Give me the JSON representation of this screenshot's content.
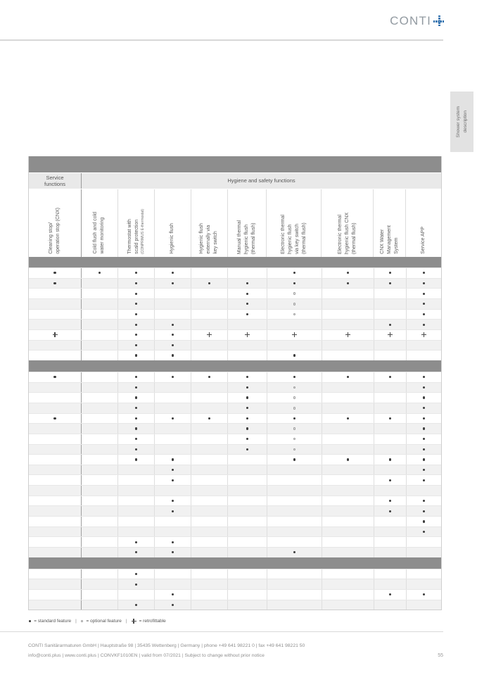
{
  "logo": {
    "text": "CONTI",
    "plus_color": "#2e6fad",
    "text_color": "#929aa1"
  },
  "side_tab": {
    "text": "Shower system\ndescription"
  },
  "table": {
    "groups": [
      {
        "label": "Service\nfunctions"
      },
      {
        "label": "Hygiene and safety functions"
      }
    ],
    "columns": [
      {
        "label": "Cleaning stop/\noperation stop (CNX)",
        "sublabel": ""
      },
      {
        "label": "Cold flush and cold\nwater monitoring",
        "sublabel": ""
      },
      {
        "label": "Thermostat with\nscald protection",
        "sublabel": "(CONPRIMUS E-thermostat)"
      },
      {
        "label": "Hygienic flush",
        "sublabel": ""
      },
      {
        "label": "Hygienic flush\nexternally via\nkey switch",
        "sublabel": ""
      },
      {
        "label": "Manual thermal\nhygienic flush\n(thermal flush)",
        "sublabel": ""
      },
      {
        "label": "Electronic thermal\nhygienic flush\nvia key switch\n(thermal flush)",
        "sublabel": ""
      },
      {
        "label": "Electronic thermal\nhygienic flush CNX\n(thermal flush)",
        "sublabel": ""
      },
      {
        "label": "CNX Water\nManagement\nSystem",
        "sublabel": ""
      },
      {
        "label": "Service APP",
        "sublabel": ""
      }
    ],
    "symbol_legend": {
      "s": "standard feature",
      "o": "optional feature",
      "r": "retrofittable"
    },
    "sections": [
      {
        "rows": [
          [
            "s",
            "s",
            "s",
            "s",
            "",
            "",
            "s",
            "s",
            "s",
            "s"
          ],
          [
            "s",
            "",
            "s",
            "s",
            "s",
            "s",
            "s",
            "s",
            "s",
            "s"
          ],
          [
            "",
            "",
            "s",
            "",
            "",
            "s",
            "o",
            "",
            "",
            "s"
          ],
          [
            "",
            "",
            "s",
            "",
            "",
            "s",
            "o",
            "",
            "",
            "s"
          ],
          [
            "",
            "",
            "s",
            "",
            "",
            "s",
            "o",
            "",
            "",
            "s"
          ],
          [
            "",
            "",
            "s",
            "s",
            "",
            "",
            "",
            "",
            "s",
            "s"
          ],
          [
            "r",
            "",
            "s",
            "s",
            "r",
            "r",
            "r",
            "r",
            "r",
            "r"
          ],
          [
            "",
            "",
            "s",
            "s",
            "",
            "",
            "",
            "",
            "",
            ""
          ],
          [
            "",
            "",
            "s",
            "s",
            "",
            "",
            "s",
            "",
            "",
            ""
          ]
        ]
      },
      {
        "rows": [
          [
            "s",
            "",
            "s",
            "s",
            "s",
            "s",
            "s",
            "s",
            "s",
            "s"
          ],
          [
            "",
            "",
            "s",
            "",
            "",
            "s",
            "o",
            "",
            "",
            "s"
          ],
          [
            "",
            "",
            "s",
            "",
            "",
            "s",
            "o",
            "",
            "",
            "s"
          ],
          [
            "",
            "",
            "s",
            "",
            "",
            "s",
            "o",
            "",
            "",
            "s"
          ],
          [
            "s",
            "",
            "s",
            "s",
            "s",
            "s",
            "s",
            "s",
            "s",
            "s"
          ],
          [
            "",
            "",
            "s",
            "",
            "",
            "s",
            "o",
            "",
            "",
            "s"
          ],
          [
            "",
            "",
            "s",
            "",
            "",
            "s",
            "o",
            "",
            "",
            "s"
          ],
          [
            "",
            "",
            "s",
            "",
            "",
            "s",
            "o",
            "",
            "",
            "s"
          ],
          [
            "",
            "",
            "s",
            "s",
            "",
            "",
            "s",
            "s",
            "s",
            "s"
          ],
          [
            "",
            "",
            "",
            "s",
            "",
            "",
            "",
            "",
            "",
            "s"
          ],
          [
            "",
            "",
            "",
            "s",
            "",
            "",
            "",
            "",
            "s",
            "s"
          ],
          [
            "",
            "",
            "",
            "",
            "",
            "",
            "",
            "",
            "",
            ""
          ],
          [
            "",
            "",
            "",
            "s",
            "",
            "",
            "",
            "",
            "s",
            "s"
          ],
          [
            "",
            "",
            "",
            "s",
            "",
            "",
            "",
            "",
            "s",
            "s"
          ],
          [
            "",
            "",
            "",
            "",
            "",
            "",
            "",
            "",
            "",
            "s"
          ],
          [
            "",
            "",
            "",
            "",
            "",
            "",
            "",
            "",
            "",
            "s"
          ],
          [
            "",
            "",
            "s",
            "s",
            "",
            "",
            "",
            "",
            "",
            ""
          ],
          [
            "",
            "",
            "s",
            "s",
            "",
            "",
            "s",
            "",
            "",
            ""
          ]
        ]
      },
      {
        "rows": [
          [
            "",
            "",
            "s",
            "",
            "",
            "",
            "",
            "",
            "",
            ""
          ],
          [
            "",
            "",
            "s",
            "",
            "",
            "",
            "",
            "",
            "",
            ""
          ],
          [
            "",
            "",
            "",
            "s",
            "",
            "",
            "",
            "",
            "s",
            "s"
          ],
          [
            "",
            "",
            "s",
            "s",
            "",
            "",
            "",
            "",
            "",
            ""
          ]
        ]
      }
    ]
  },
  "legend": {
    "standard": "= standard feature",
    "optional": "= optional feature",
    "retrofit": "= retrofittable",
    "separator": "|"
  },
  "footer": {
    "line1": "CONTI Sanitärarmaturen GmbH | Hauptstraße 98 | 35435 Wettenberg | Germany | phone +49 641 98221 0 | fax +49 641 98221 50",
    "line2": "info@conti.plus | www.conti.plus | CONVKF1010EN | valid from 07/2021 | Subject to change without prior notice",
    "page": "55"
  }
}
